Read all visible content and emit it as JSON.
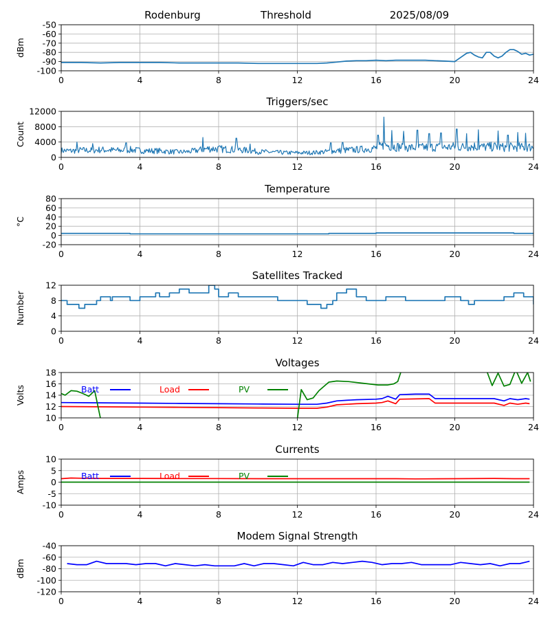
{
  "header": {
    "station": "Rodenburg",
    "mode": "Threshold",
    "date": "2025/08/09"
  },
  "x_axis": {
    "min": 0,
    "max": 24,
    "ticks": [
      0,
      4,
      8,
      12,
      16,
      20,
      24
    ]
  },
  "chart_data": [
    {
      "type": "line",
      "title": "",
      "ylabel": "dBm",
      "ylim": [
        -100,
        -50
      ],
      "yticks": [
        -100,
        -90,
        -80,
        -70,
        -60,
        -50
      ],
      "grid": true,
      "series": [
        {
          "color": "#1f77b4",
          "x": [
            0,
            1,
            2,
            3,
            4,
            5,
            6,
            7,
            8,
            9,
            10,
            11,
            12,
            13,
            13.5,
            14,
            14.5,
            15,
            15.5,
            16,
            16.5,
            17,
            17.5,
            18,
            18.5,
            19,
            19.5,
            20,
            20.2,
            20.4,
            20.6,
            20.8,
            21,
            21.2,
            21.4,
            21.6,
            21.8,
            22,
            22.2,
            22.4,
            22.6,
            22.8,
            23,
            23.2,
            23.4,
            23.6,
            23.8,
            24
          ],
          "y": [
            -91,
            -91,
            -91.5,
            -91,
            -91,
            -91,
            -91.5,
            -91.5,
            -91.5,
            -91.5,
            -92,
            -92,
            -92,
            -92,
            -91.5,
            -90.5,
            -89.5,
            -89,
            -89,
            -88.5,
            -89,
            -88.5,
            -88.5,
            -88.5,
            -88.5,
            -89,
            -89.5,
            -90,
            -87,
            -84,
            -81,
            -80,
            -83,
            -85,
            -86,
            -80,
            -80,
            -84,
            -86,
            -84,
            -80,
            -77,
            -77,
            -79,
            -82,
            -81,
            -83,
            -82
          ]
        }
      ]
    },
    {
      "type": "line",
      "title": "Triggers/sec",
      "ylabel": "Count",
      "ylim": [
        0,
        12000
      ],
      "yticks": [
        0,
        4000,
        8000,
        12000
      ],
      "grid": true,
      "noisy": true,
      "series": [
        {
          "color": "#1f77b4",
          "x": [
            0,
            0.5,
            1,
            1.5,
            2,
            2.5,
            3,
            3.5,
            4,
            4.5,
            5,
            5.5,
            6,
            6.5,
            7,
            7.5,
            8,
            8.5,
            9,
            9.5,
            10,
            10.5,
            11,
            11.5,
            12,
            12.5,
            13,
            13.5,
            14,
            14.5,
            15,
            15.5,
            16,
            16.5,
            17,
            17.5,
            18,
            18.5,
            19,
            19.5,
            20,
            20.5,
            21,
            21.5,
            22,
            22.5,
            23,
            23.5,
            24
          ],
          "y": [
            1800,
            1700,
            1900,
            1800,
            2000,
            1900,
            1800,
            2000,
            1800,
            1700,
            1700,
            1500,
            1400,
            1500,
            1900,
            2300,
            2200,
            2100,
            2000,
            1800,
            1500,
            1400,
            1300,
            1200,
            1200,
            1200,
            1300,
            1500,
            1700,
            1900,
            2000,
            2200,
            2400,
            3200,
            2800,
            2600,
            2500,
            2600,
            2700,
            2600,
            2800,
            2700,
            2900,
            2700,
            2800,
            2600,
            2700,
            2600,
            2700
          ],
          "spikes": [
            [
              0.8,
              4000
            ],
            [
              1.6,
              3600
            ],
            [
              3.3,
              3800
            ],
            [
              7.2,
              5200
            ],
            [
              8.9,
              5000
            ],
            [
              9.6,
              3500
            ],
            [
              13.7,
              3800
            ],
            [
              14.3,
              3900
            ],
            [
              16.1,
              5800
            ],
            [
              16.4,
              10500
            ],
            [
              16.8,
              7000
            ],
            [
              17.4,
              6800
            ],
            [
              18.1,
              7100
            ],
            [
              18.7,
              6200
            ],
            [
              19.3,
              6400
            ],
            [
              20.1,
              7400
            ],
            [
              20.6,
              6200
            ],
            [
              21.2,
              7200
            ],
            [
              22.2,
              6900
            ],
            [
              22.7,
              5800
            ],
            [
              23.2,
              6500
            ],
            [
              23.6,
              6300
            ]
          ]
        }
      ]
    },
    {
      "type": "line",
      "title": "Temperature",
      "ylabel": "°C",
      "ylim": [
        -20,
        80
      ],
      "yticks": [
        -20,
        0,
        20,
        40,
        60,
        80
      ],
      "grid": true,
      "series": [
        {
          "color": "#1f77b4",
          "x": [
            0,
            3.5,
            3.5,
            13.6,
            13.6,
            16,
            16,
            23,
            23,
            24
          ],
          "y": [
            4.5,
            4.5,
            3.5,
            3.5,
            4.5,
            4.5,
            5.5,
            5.5,
            4.5,
            4.5
          ]
        }
      ]
    },
    {
      "type": "line",
      "title": "Satellites Tracked",
      "ylabel": "Number",
      "ylim": [
        0,
        12
      ],
      "yticks": [
        0,
        4,
        8,
        12
      ],
      "grid": true,
      "step": true,
      "series": [
        {
          "color": "#1f77b4",
          "x": [
            0,
            0.3,
            0.8,
            0.9,
            1.2,
            1.8,
            2,
            2.5,
            2.6,
            3.5,
            4,
            4.5,
            4.8,
            5,
            5.5,
            6,
            6.5,
            7,
            7.5,
            7.8,
            8,
            8.5,
            9,
            9.5,
            10,
            10.3,
            11,
            11.5,
            12,
            12.5,
            13,
            13.2,
            13.5,
            13.8,
            14,
            14.5,
            15,
            15.5,
            16,
            16.5,
            17,
            17.5,
            18,
            18.5,
            19,
            19.5,
            20,
            20.3,
            20.7,
            21,
            21.5,
            22,
            22.5,
            23,
            23.5,
            24
          ],
          "y": [
            8,
            7,
            7,
            6,
            7,
            8,
            9,
            8,
            9,
            8,
            9,
            9,
            10,
            9,
            10,
            11,
            10,
            10,
            12,
            11,
            9,
            10,
            9,
            9,
            9,
            9,
            8,
            8,
            8,
            7,
            7,
            6,
            7,
            8,
            10,
            11,
            9,
            8,
            8,
            9,
            9,
            8,
            8,
            8,
            8,
            9,
            9,
            8,
            7,
            8,
            8,
            8,
            9,
            10,
            9,
            7
          ]
        }
      ]
    },
    {
      "type": "line",
      "title": "Voltages",
      "ylabel": "Volts",
      "ylim": [
        10,
        18
      ],
      "yticks": [
        10,
        12,
        14,
        16,
        18
      ],
      "grid": true,
      "legend": [
        {
          "name": "Batt",
          "color": "#0000ff"
        },
        {
          "name": "Load",
          "color": "#ff0000"
        },
        {
          "name": "PV",
          "color": "#008000"
        }
      ],
      "series": [
        {
          "name": "Batt",
          "color": "#0000ff",
          "x": [
            0,
            2,
            4,
            6,
            8,
            10,
            12,
            13,
            13.5,
            14,
            14.5,
            15,
            16,
            16.3,
            16.6,
            17,
            17.2,
            18,
            18.7,
            19,
            20,
            21,
            22,
            22.5,
            22.8,
            23.2,
            23.6,
            23.8
          ],
          "y": [
            12.7,
            12.65,
            12.6,
            12.55,
            12.5,
            12.45,
            12.4,
            12.4,
            12.6,
            13,
            13.1,
            13.2,
            13.3,
            13.4,
            13.8,
            13.3,
            14.1,
            14.2,
            14.2,
            13.4,
            13.4,
            13.4,
            13.4,
            13.0,
            13.4,
            13.2,
            13.4,
            13.3
          ]
        },
        {
          "name": "Load",
          "color": "#ff0000",
          "x": [
            0,
            2,
            4,
            6,
            8,
            10,
            12,
            13,
            13.5,
            14,
            14.5,
            15,
            16,
            16.3,
            16.6,
            17,
            17.2,
            18,
            18.7,
            19,
            20,
            21,
            22,
            22.5,
            22.8,
            23.2,
            23.6,
            23.8
          ],
          "y": [
            12.0,
            11.95,
            11.9,
            11.85,
            11.8,
            11.75,
            11.7,
            11.7,
            11.9,
            12.3,
            12.4,
            12.5,
            12.6,
            12.7,
            13.0,
            12.5,
            13.3,
            13.35,
            13.4,
            12.6,
            12.6,
            12.6,
            12.6,
            12.2,
            12.6,
            12.4,
            12.6,
            12.5
          ]
        },
        {
          "name": "PV",
          "color": "#008000",
          "x": [
            0,
            0.2,
            0.5,
            0.8,
            1.1,
            1.4,
            1.7,
            2.0,
            12.0,
            12.2,
            12.5,
            12.8,
            13.1,
            13.6,
            14.0,
            14.6,
            15.1,
            15.6,
            16.1,
            16.6,
            16.9,
            17.1,
            17.3,
            21.6,
            21.9,
            22.2,
            22.5,
            22.8,
            23.1,
            23.4,
            23.7,
            23.85
          ],
          "y": [
            14.3,
            14.0,
            14.8,
            14.7,
            14.3,
            13.8,
            14.8,
            9.8,
            9.8,
            15.0,
            13.2,
            13.5,
            14.8,
            16.3,
            16.5,
            16.4,
            16.2,
            16.0,
            15.8,
            15.8,
            16.0,
            16.4,
            18.5,
            18.5,
            15.7,
            17.9,
            15.6,
            15.9,
            18.5,
            16.1,
            18.0,
            16.4
          ]
        }
      ]
    },
    {
      "type": "line",
      "title": "Currents",
      "ylabel": "Amps",
      "ylim": [
        -10,
        10
      ],
      "yticks": [
        -10,
        -5,
        0,
        5,
        10
      ],
      "grid": true,
      "legend": [
        {
          "name": "Batt",
          "color": "#0000ff"
        },
        {
          "name": "Load",
          "color": "#ff0000"
        },
        {
          "name": "PV",
          "color": "#008000"
        }
      ],
      "series": [
        {
          "name": "Load",
          "color": "#ff0000",
          "x": [
            0,
            0.5,
            1,
            2,
            4,
            6,
            8,
            10,
            12,
            14,
            16,
            17,
            18,
            20,
            22,
            23,
            23.8
          ],
          "y": [
            1.5,
            1.8,
            1.7,
            1.6,
            1.6,
            1.55,
            1.55,
            1.5,
            1.5,
            1.5,
            1.5,
            1.5,
            1.4,
            1.5,
            1.6,
            1.5,
            1.5
          ]
        },
        {
          "name": "PV",
          "color": "#008000",
          "x": [
            0,
            23.8
          ],
          "y": [
            0,
            0
          ]
        }
      ]
    },
    {
      "type": "line",
      "title": "Modem Signal Strength",
      "ylabel": "dBm",
      "ylim": [
        -120,
        -40
      ],
      "yticks": [
        -120,
        -100,
        -80,
        -60,
        -40
      ],
      "grid": true,
      "series": [
        {
          "color": "#0000ff",
          "x": [
            0.3,
            0.8,
            1.3,
            1.8,
            2.3,
            2.8,
            3.3,
            3.8,
            4.3,
            4.8,
            5.3,
            5.8,
            6.3,
            6.8,
            7.3,
            7.8,
            8.3,
            8.8,
            9.3,
            9.8,
            10.3,
            10.8,
            11.3,
            11.8,
            12.3,
            12.8,
            13.3,
            13.8,
            14.3,
            14.8,
            15.3,
            15.8,
            16.3,
            16.8,
            17.3,
            17.8,
            18.3,
            18.8,
            19.3,
            19.8,
            20.3,
            20.8,
            21.3,
            21.8,
            22.3,
            22.8,
            23.3,
            23.8
          ],
          "y": [
            -71,
            -73,
            -73,
            -67,
            -71,
            -71,
            -71,
            -73,
            -71,
            -71,
            -75,
            -71,
            -73,
            -75,
            -73,
            -75,
            -75,
            -75,
            -71,
            -75,
            -71,
            -71,
            -73,
            -75,
            -69,
            -73,
            -73,
            -69,
            -71,
            -69,
            -67,
            -69,
            -73,
            -71,
            -71,
            -69,
            -73,
            -73,
            -73,
            -73,
            -69,
            -71,
            -73,
            -71,
            -75,
            -71,
            -71,
            -67
          ]
        }
      ]
    }
  ]
}
